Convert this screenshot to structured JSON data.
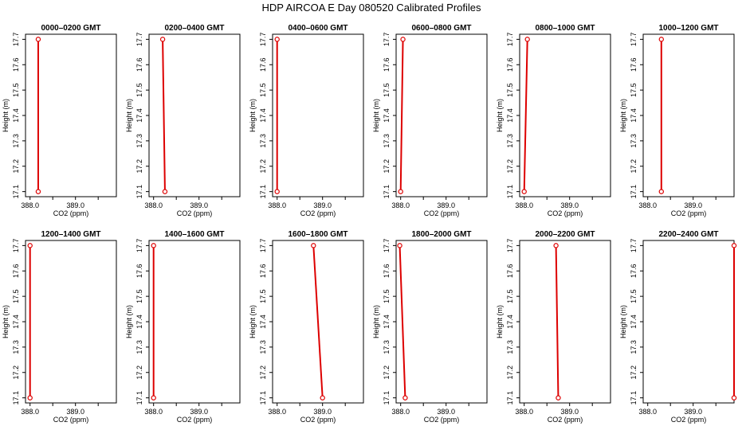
{
  "title": "HDP AIRCOA E  Day 080520  Calibrated Profiles",
  "chart_data": {
    "type": "line",
    "xlabel": "CO2 (ppm)",
    "ylabel": "Height (m)",
    "xlim": [
      387.9,
      389.9
    ],
    "ylim": [
      17.08,
      17.72
    ],
    "xticks": [
      "388.0",
      "389.0"
    ],
    "yticks": [
      "17.1",
      "17.2",
      "17.3",
      "17.4",
      "17.5",
      "17.6",
      "17.7"
    ],
    "grid": false,
    "line_color": "#dd0000",
    "panels": [
      {
        "title": "0000–0200 GMT",
        "points": [
          {
            "x": 388.18,
            "y": 17.1
          },
          {
            "x": 388.18,
            "y": 17.7
          }
        ]
      },
      {
        "title": "0200–0400 GMT",
        "points": [
          {
            "x": 388.25,
            "y": 17.1
          },
          {
            "x": 388.2,
            "y": 17.7
          }
        ]
      },
      {
        "title": "0400–0600 GMT",
        "points": [
          {
            "x": 388.0,
            "y": 17.1
          },
          {
            "x": 388.0,
            "y": 17.7
          }
        ]
      },
      {
        "title": "0600–0800 GMT",
        "points": [
          {
            "x": 388.0,
            "y": 17.1
          },
          {
            "x": 388.05,
            "y": 17.7
          }
        ]
      },
      {
        "title": "0800–1000 GMT",
        "points": [
          {
            "x": 388.0,
            "y": 17.1
          },
          {
            "x": 388.07,
            "y": 17.7
          }
        ]
      },
      {
        "title": "1000–1200 GMT",
        "points": [
          {
            "x": 388.3,
            "y": 17.1
          },
          {
            "x": 388.3,
            "y": 17.7
          }
        ]
      },
      {
        "title": "1200–1400 GMT",
        "points": [
          {
            "x": 388.0,
            "y": 17.1
          },
          {
            "x": 388.0,
            "y": 17.7
          }
        ]
      },
      {
        "title": "1400–1600 GMT",
        "points": [
          {
            "x": 388.0,
            "y": 17.1
          },
          {
            "x": 388.0,
            "y": 17.7
          }
        ]
      },
      {
        "title": "1600–1800 GMT",
        "points": [
          {
            "x": 389.0,
            "y": 17.1
          },
          {
            "x": 388.8,
            "y": 17.7
          }
        ]
      },
      {
        "title": "1800–2000 GMT",
        "points": [
          {
            "x": 388.1,
            "y": 17.1
          },
          {
            "x": 387.98,
            "y": 17.7
          }
        ]
      },
      {
        "title": "2000–2200 GMT",
        "points": [
          {
            "x": 388.75,
            "y": 17.1
          },
          {
            "x": 388.7,
            "y": 17.7
          }
        ]
      },
      {
        "title": "2200–2400 GMT",
        "points": [
          {
            "x": 389.9,
            "y": 17.1
          },
          {
            "x": 389.9,
            "y": 17.7
          }
        ]
      }
    ]
  }
}
